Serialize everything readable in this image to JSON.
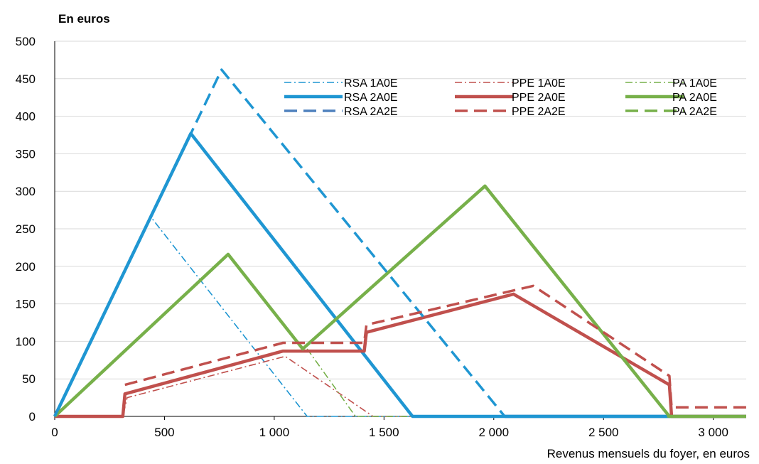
{
  "chart_data": {
    "type": "line",
    "ylabel": "En euros",
    "xlabel": "Revenus mensuels du foyer, en euros",
    "xlim": [
      0,
      3150
    ],
    "ylim": [
      0,
      500
    ],
    "x_ticks": [
      0,
      500,
      1000,
      1500,
      2000,
      2500,
      3000
    ],
    "x_tick_labels": [
      "0",
      "500",
      "1 000",
      "1 500",
      "2 000",
      "2 500",
      "3 000"
    ],
    "y_ticks": [
      0,
      50,
      100,
      150,
      200,
      250,
      300,
      350,
      400,
      450,
      500
    ],
    "y_tick_labels": [
      "0",
      "50",
      "100",
      "150",
      "200",
      "250",
      "300",
      "350",
      "400",
      "450",
      "500"
    ],
    "grid": "horizontal",
    "legend_position": "top-right",
    "series": [
      {
        "name": "RSA 1A0E",
        "color": "#1f96d2",
        "style": "dashdot-thin",
        "points": [
          [
            0,
            0
          ],
          [
            440,
            265
          ],
          [
            1150,
            0
          ],
          [
            3150,
            0
          ]
        ]
      },
      {
        "name": "PPE 1A0E",
        "color": "#c0504d",
        "style": "dashdot-thin",
        "points": [
          [
            0,
            0
          ],
          [
            310,
            0
          ],
          [
            330,
            25
          ],
          [
            1050,
            80
          ],
          [
            1450,
            0
          ],
          [
            3150,
            0
          ]
        ]
      },
      {
        "name": "PA 1A0E",
        "color": "#77b04a",
        "style": "dashdot-thin",
        "points": [
          [
            1150,
            90
          ],
          [
            1370,
            0
          ],
          [
            3150,
            0
          ]
        ]
      },
      {
        "name": "RSA 2A0E",
        "color": "#1f96d2",
        "style": "solid",
        "points": [
          [
            0,
            0
          ],
          [
            620,
            377
          ],
          [
            1630,
            0
          ],
          [
            3150,
            0
          ]
        ]
      },
      {
        "name": "PPE 2A0E",
        "color": "#c0504d",
        "style": "solid",
        "points": [
          [
            0,
            0
          ],
          [
            310,
            0
          ],
          [
            320,
            30
          ],
          [
            1040,
            87
          ],
          [
            1410,
            87
          ],
          [
            1420,
            112
          ],
          [
            2090,
            163
          ],
          [
            2800,
            42
          ],
          [
            2810,
            0
          ],
          [
            3150,
            0
          ]
        ]
      },
      {
        "name": "PA 2A0E",
        "color": "#77b04a",
        "style": "solid",
        "points": [
          [
            0,
            0
          ],
          [
            790,
            216
          ],
          [
            1130,
            90
          ],
          [
            1960,
            307
          ],
          [
            2800,
            0
          ],
          [
            3150,
            0
          ]
        ]
      },
      {
        "name": "RSA 2A2E",
        "color": "#1f96d2",
        "style": "dashed",
        "points": [
          [
            0,
            0
          ],
          [
            760,
            462
          ],
          [
            2050,
            0
          ]
        ]
      },
      {
        "name": "PPE 2A2E",
        "color": "#c0504d",
        "style": "dashed",
        "points": [
          [
            320,
            42
          ],
          [
            1040,
            98
          ],
          [
            1410,
            98
          ],
          [
            1420,
            122
          ],
          [
            2180,
            174
          ],
          [
            2800,
            54
          ],
          [
            2810,
            12
          ],
          [
            3150,
            12
          ]
        ]
      },
      {
        "name": "PA 2A2E",
        "color": "#77b04a",
        "style": "dashed",
        "points": [
          [
            2790,
            0
          ],
          [
            3150,
            0
          ]
        ]
      }
    ],
    "extra_segments": [
      {
        "color": "#4f81bd",
        "style": "solid",
        "points": [
          [
            2050,
            0
          ],
          [
            2800,
            0
          ]
        ]
      }
    ]
  },
  "legend": {
    "items": [
      {
        "name": "RSA 1A0E",
        "color": "#1f96d2",
        "style": "dashdot-thin"
      },
      {
        "name": "PPE 1A0E",
        "color": "#c0504d",
        "style": "dashdot-thin"
      },
      {
        "name": "PA 1A0E",
        "color": "#77b04a",
        "style": "dashdot-thin"
      },
      {
        "name": "RSA 2A0E",
        "color": "#1f96d2",
        "style": "solid"
      },
      {
        "name": "PPE 2A0E",
        "color": "#c0504d",
        "style": "solid"
      },
      {
        "name": "PA 2A0E",
        "color": "#77b04a",
        "style": "solid"
      },
      {
        "name": "RSA 2A2E",
        "color": "#4f81bd",
        "style": "dashed"
      },
      {
        "name": "PPE 2A2E",
        "color": "#c0504d",
        "style": "dashed"
      },
      {
        "name": "PA 2A2E",
        "color": "#77b04a",
        "style": "dashed"
      }
    ]
  }
}
